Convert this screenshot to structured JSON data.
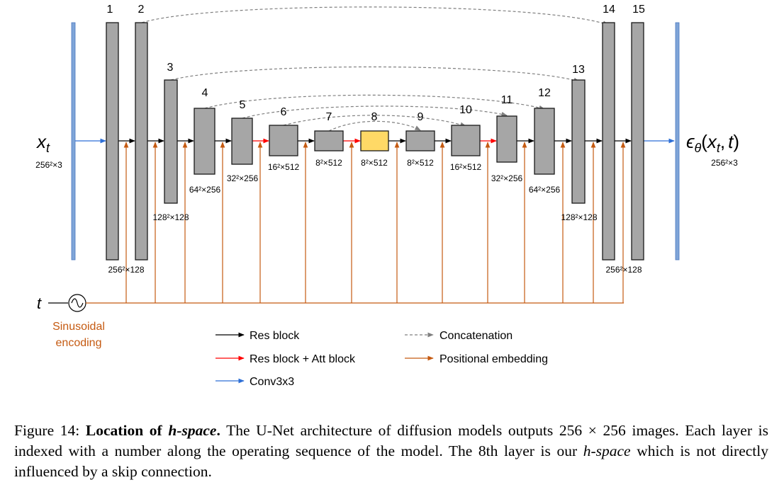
{
  "diagram": {
    "input": {
      "symbol": "x",
      "subscript": "t",
      "shape": "256²×3"
    },
    "output": {
      "expression": "ϵθ(xt, t)",
      "eps": "ϵ",
      "theta": "θ",
      "x": "x",
      "t": "t",
      "open": "(",
      "comma": ",",
      "close": ")",
      "shape": "256²×3"
    },
    "time_input": {
      "label": "t"
    },
    "sinusoidal": {
      "line1": "Sinusoidal",
      "line2": "encoding"
    },
    "layers": [
      {
        "index": "1",
        "size": "256²×128"
      },
      {
        "index": "2",
        "size": ""
      },
      {
        "index": "3",
        "size": "128²×128"
      },
      {
        "index": "4",
        "size": "64²×256"
      },
      {
        "index": "5",
        "size": "32²×256"
      },
      {
        "index": "6",
        "size": "16²×512"
      },
      {
        "index": "7",
        "size": "8²×512"
      },
      {
        "index": "8",
        "size": "8²×512",
        "highlight": true
      },
      {
        "index": "9",
        "size": "8²×512"
      },
      {
        "index": "10",
        "size": "16²×512"
      },
      {
        "index": "11",
        "size": "32²×256"
      },
      {
        "index": "12",
        "size": "64²×256"
      },
      {
        "index": "13",
        "size": "128²×128"
      },
      {
        "index": "14",
        "size": "256²×128"
      },
      {
        "index": "15",
        "size": ""
      }
    ],
    "legend": {
      "res_block": "Res block",
      "res_att_block": "Res block + Att block",
      "conv": "Conv3x3",
      "concat": "Concatenation",
      "pos_emb": "Positional embedding"
    },
    "colors": {
      "block": "#a6a6a6",
      "highlight": "#ffd966",
      "conv_bar": "#7fa5d8",
      "res_arrow": "#000000",
      "att_arrow": "#ff0000",
      "conv_arrow": "#2e6fd6",
      "concat_arrow": "#7f7f7f",
      "pos_arrow": "#c55a11"
    }
  },
  "caption": {
    "fig_label": "Figure 14:",
    "title_bold": "Location of",
    "title_italic": "h-space",
    "title_end": ".",
    "text1": " The U-Net architecture of diffusion models outputs 256 × 256 images. Each layer is indexed with a number along the operating sequence of the model. The 8th layer is our ",
    "hspace": "h-space",
    "text2": " which is not directly influenced by a skip connection."
  }
}
